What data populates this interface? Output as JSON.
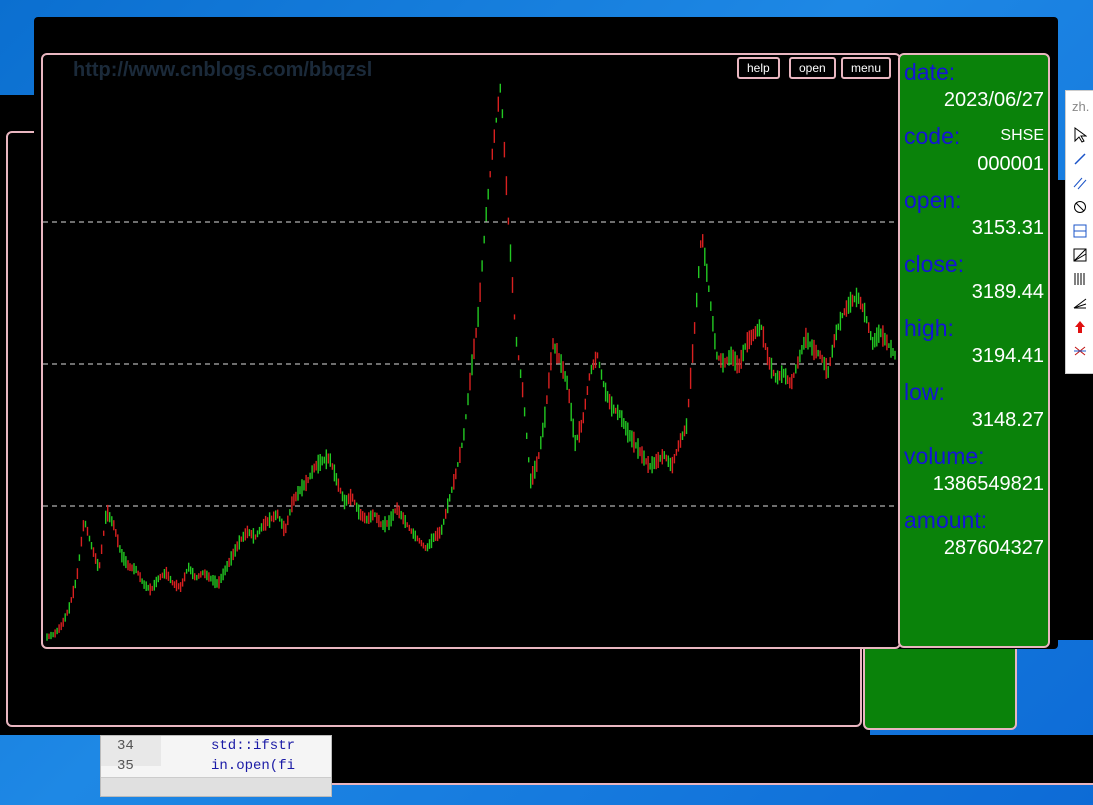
{
  "window": {
    "watermark": "http://www.cnblogs.com/bbqzsl",
    "buttons": {
      "help": "help",
      "open": "open",
      "menu": "menu"
    }
  },
  "info": {
    "date_label": "date:",
    "date_value": "2023/06/27",
    "code_label": "code:",
    "code_exchange": "SHSE",
    "code_value": "000001",
    "open_label": "open:",
    "open_value": "3153.31",
    "close_label": "close:",
    "close_value": "3189.44",
    "high_label": "high:",
    "high_value": "3194.41",
    "low_label": "low:",
    "low_value": "3148.27",
    "volume_label": "volume:",
    "volume_value": "1386549821",
    "amount_label": "amount:",
    "amount_value": "287604327"
  },
  "editor": {
    "line_1_number": "34",
    "line_1_code": "std::ifstr",
    "line_2_number": "35",
    "line_2_code": "in.open(fi"
  },
  "toolbar": {
    "lang": "zh.",
    "tools": [
      "select-cursor-icon",
      "line-tool-icon",
      "parallel-line-tool-icon",
      "circle-tool-icon",
      "fibonacci-tool-icon",
      "fan-tool-icon",
      "vertical-lines-tool-icon",
      "angle-tool-icon",
      "arrow-up-icon",
      "cross-tool-icon"
    ]
  },
  "colors": {
    "frame": "#e9b6c0",
    "panel_green": "#0a820a",
    "label_blue": "#1414d6",
    "candle_up": "#22c822",
    "candle_down": "#d82020"
  },
  "chart_data": {
    "type": "line",
    "series": [
      {
        "values": [
          0.02,
          0.03,
          0.06,
          0.12,
          0.22,
          0.42,
          0.33,
          0.25,
          0.45,
          0.4,
          0.3,
          0.26,
          0.25,
          0.2,
          0.18,
          0.22,
          0.24,
          0.2,
          0.19,
          0.26,
          0.22,
          0.24,
          0.22,
          0.2,
          0.25,
          0.3,
          0.35,
          0.38,
          0.36,
          0.4,
          0.42,
          0.44,
          0.38,
          0.48,
          0.52,
          0.55,
          0.6,
          0.62,
          0.63,
          0.55,
          0.48,
          0.5,
          0.44,
          0.42,
          0.44,
          0.4,
          0.41,
          0.46,
          0.42,
          0.38,
          0.35,
          0.32,
          0.36,
          0.38,
          0.48,
          0.58,
          0.7,
          0.92,
          1.12,
          1.45,
          1.7,
          1.9,
          1.45,
          1.05,
          0.85,
          0.55,
          0.62,
          0.78,
          1.02,
          0.96,
          0.88,
          0.68,
          0.75,
          0.92,
          0.98,
          0.86,
          0.8,
          0.78,
          0.72,
          0.68,
          0.64,
          0.6,
          0.62,
          0.64,
          0.6,
          0.68,
          0.74,
          1.05,
          1.4,
          1.2,
          0.98,
          0.95,
          0.98,
          0.94,
          1.02,
          1.05,
          1.08,
          0.96,
          0.9,
          0.92,
          0.88,
          0.96,
          1.04,
          1.0,
          0.98,
          0.92,
          1.05,
          1.12,
          1.16,
          1.18,
          1.12,
          1.02,
          1.06,
          1.02,
          0.98
        ]
      }
    ],
    "grid": "dashed horizontal"
  }
}
